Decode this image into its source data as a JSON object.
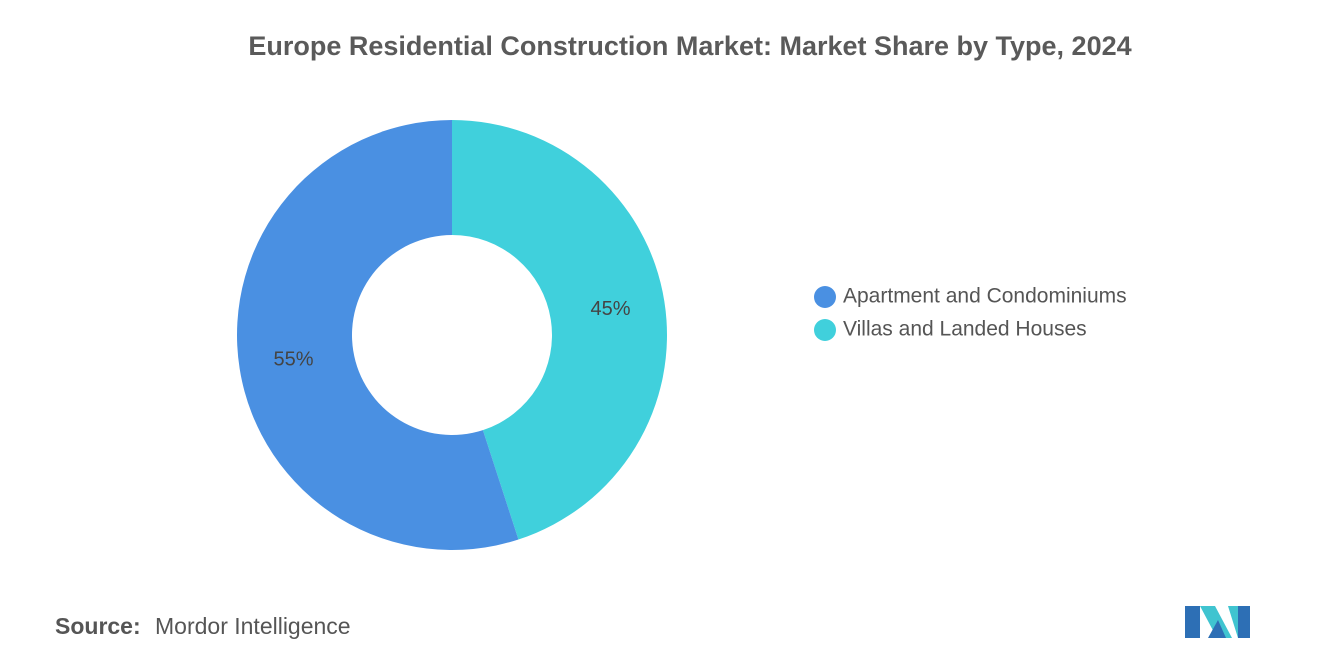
{
  "chart_data": {
    "type": "pie",
    "donut": true,
    "title": "Europe Residential Construction Market: Market Share by Type, 2024",
    "categories": [
      "Apartment and Condominiums",
      "Villas and Landed Houses"
    ],
    "values": [
      55,
      45
    ],
    "value_labels": [
      "55%",
      "45%"
    ],
    "colors": [
      "#4a90e2",
      "#40d0dc"
    ]
  },
  "source": {
    "label": "Source:",
    "text": "Mordor Intelligence"
  }
}
